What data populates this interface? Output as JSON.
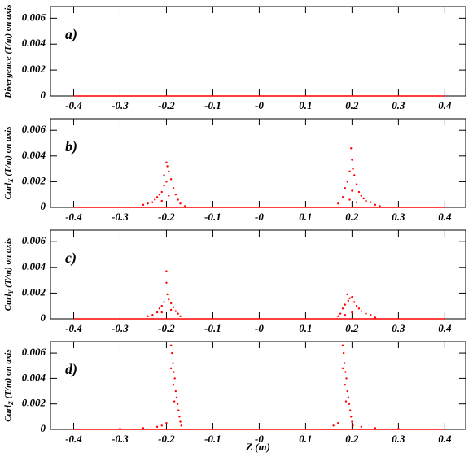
{
  "chart_data": [
    {
      "type": "scatter",
      "panel_label": "a)",
      "ylabel": [
        "Divergence (T/m) on axis"
      ],
      "xlim": [
        -0.45,
        0.445
      ],
      "ylim": [
        0,
        0.0069
      ],
      "xticks": [
        -0.4,
        -0.3,
        -0.2,
        -0.1,
        {
          "value": 0,
          "label": "-0"
        },
        0.1,
        0.2,
        0.3,
        0.4
      ],
      "yticks": [
        0,
        0.002,
        0.004,
        0.006
      ],
      "series": [
        {
          "type": "line",
          "color": "#ff0000",
          "x": [
            -0.4,
            0.4
          ],
          "values": [
            0,
            0
          ]
        }
      ]
    },
    {
      "type": "scatter",
      "panel_label": "b)",
      "ylabel": [
        "Curl",
        "X",
        " (T/m) on axis"
      ],
      "xlim": [
        -0.45,
        0.445
      ],
      "ylim": [
        0,
        0.0069
      ],
      "xticks": [
        -0.4,
        -0.3,
        -0.2,
        -0.1,
        {
          "value": 0,
          "label": "-0"
        },
        0.1,
        0.2,
        0.3,
        0.4
      ],
      "yticks": [
        0,
        0.002,
        0.004,
        0.006
      ],
      "series": [
        {
          "type": "line",
          "color": "#ff0000",
          "x": [
            -0.4,
            0.4
          ],
          "values": [
            0,
            0
          ]
        },
        {
          "type": "scatter",
          "color": "#ff0000",
          "x": [
            -0.25,
            -0.24,
            -0.23,
            -0.225,
            -0.22,
            -0.215,
            -0.21,
            -0.205,
            -0.2,
            -0.198,
            -0.195,
            -0.2,
            -0.19,
            -0.185,
            -0.18,
            -0.175,
            -0.17,
            -0.21,
            -0.195,
            -0.16,
            -0.205,
            0.17,
            0.18,
            0.185,
            0.19,
            0.195,
            0.198,
            0.2,
            0.202,
            0.205,
            0.21,
            0.215,
            0.22,
            0.225,
            0.23,
            0.24,
            0.25,
            0.26,
            0.2,
            0.195,
            0.21
          ],
          "values": [
            0.0002,
            0.0003,
            0.0004,
            0.0006,
            0.0008,
            0.001,
            0.0012,
            0.0025,
            0.0035,
            0.0032,
            0.0028,
            0.002,
            0.0022,
            0.0015,
            0.001,
            0.0006,
            0.0003,
            0.0005,
            0.0009,
            0.0001,
            0.0017,
            0.0003,
            0.0008,
            0.0015,
            0.002,
            0.0028,
            0.0046,
            0.0037,
            0.003,
            0.0025,
            0.0018,
            0.0012,
            0.0009,
            0.0007,
            0.0005,
            0.0004,
            0.0002,
            0.0001,
            0.0013,
            0.0006,
            0.0004
          ]
        }
      ]
    },
    {
      "type": "scatter",
      "panel_label": "c)",
      "ylabel": [
        "Curl",
        "Y",
        " (T/m) on axis"
      ],
      "xlim": [
        -0.45,
        0.445
      ],
      "ylim": [
        0,
        0.0069
      ],
      "xticks": [
        -0.4,
        -0.3,
        -0.2,
        -0.1,
        {
          "value": 0,
          "label": "-0"
        },
        0.1,
        0.2,
        0.3,
        0.4
      ],
      "yticks": [
        0,
        0.002,
        0.004,
        0.006
      ],
      "series": [
        {
          "type": "line",
          "color": "#ff0000",
          "x": [
            -0.4,
            0.4
          ],
          "values": [
            0,
            0
          ]
        },
        {
          "type": "scatter",
          "color": "#ff0000",
          "x": [
            -0.24,
            -0.23,
            -0.22,
            -0.215,
            -0.21,
            -0.205,
            -0.2,
            -0.2,
            -0.198,
            -0.195,
            -0.19,
            -0.185,
            -0.18,
            -0.175,
            -0.17,
            -0.21,
            -0.19,
            0.17,
            0.175,
            0.18,
            0.185,
            0.19,
            0.192,
            0.195,
            0.2,
            0.205,
            0.21,
            0.215,
            0.22,
            0.23,
            0.24,
            0.25,
            0.2,
            0.185
          ],
          "values": [
            0.0002,
            0.0003,
            0.0005,
            0.0008,
            0.001,
            0.0013,
            0.0037,
            0.0028,
            0.0019,
            0.0015,
            0.0012,
            0.0009,
            0.0006,
            0.0004,
            0.0002,
            0.0005,
            0.0007,
            0.0002,
            0.0004,
            0.0008,
            0.0011,
            0.0019,
            0.0014,
            0.0016,
            0.0017,
            0.0013,
            0.001,
            0.0008,
            0.0006,
            0.0004,
            0.0003,
            0.0001,
            0.0005,
            0.0003
          ]
        }
      ]
    },
    {
      "type": "scatter",
      "panel_label": "d)",
      "ylabel": [
        "Curl",
        "Z",
        " (T/m) on axis"
      ],
      "xlabel": "Z (m)",
      "xlim": [
        -0.45,
        0.445
      ],
      "ylim": [
        0,
        0.0069
      ],
      "xticks": [
        -0.4,
        -0.3,
        -0.2,
        -0.1,
        {
          "value": 0,
          "label": "-0"
        },
        0.1,
        0.2,
        0.3,
        0.4
      ],
      "yticks": [
        0,
        0.002,
        0.004,
        0.006
      ],
      "series": [
        {
          "type": "line",
          "color": "#ff0000",
          "x": [
            -0.4,
            0.4
          ],
          "values": [
            0,
            0
          ]
        },
        {
          "type": "scatter",
          "color": "#ff0000",
          "x": [
            -0.19,
            -0.188,
            -0.186,
            -0.19,
            -0.184,
            -0.182,
            -0.185,
            -0.18,
            -0.178,
            -0.183,
            -0.176,
            -0.174,
            -0.172,
            -0.17,
            -0.168,
            -0.2,
            -0.21,
            -0.22,
            -0.25,
            -0.3,
            0.18,
            0.182,
            0.184,
            0.18,
            0.186,
            0.188,
            0.185,
            0.19,
            0.192,
            0.187,
            0.194,
            0.196,
            0.198,
            0.2,
            0.202,
            0.17,
            0.16,
            0.22,
            0.25,
            0.3
          ],
          "values": [
            0.0066,
            0.006,
            0.0052,
            0.0048,
            0.0045,
            0.004,
            0.0035,
            0.003,
            0.0025,
            0.0022,
            0.002,
            0.0015,
            0.001,
            0.0006,
            0.0003,
            0.0005,
            0.0003,
            0.0002,
            0.0001,
            5e-05,
            0.0066,
            0.006,
            0.0052,
            0.0048,
            0.0045,
            0.004,
            0.0035,
            0.003,
            0.0025,
            0.0022,
            0.002,
            0.0015,
            0.001,
            0.0006,
            0.0003,
            0.0005,
            0.0003,
            0.0002,
            0.0001,
            5e-05
          ]
        }
      ]
    }
  ]
}
